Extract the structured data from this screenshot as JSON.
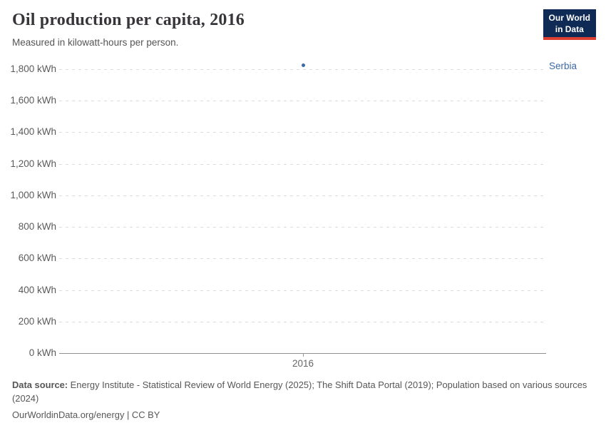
{
  "header": {
    "title": "Oil production per capita, 2016",
    "subtitle": "Measured in kilowatt-hours per person.",
    "logo": {
      "line1": "Our World",
      "line2": "in Data"
    }
  },
  "footer": {
    "source_label": "Data source:",
    "source_text": " Energy Institute - Statistical Review of World Energy (2025); The Shift Data Portal (2019); Population based on various sources (2024)",
    "note": "OurWorldinData.org/energy | CC BY"
  },
  "colors": {
    "accent_blue": "#3d6aa8",
    "logo_bg": "#0e2a55",
    "logo_red": "#dc3e32",
    "gridline": "#dcdcdc",
    "axis": "#8f8f8f",
    "text_gray": "#5b5b5b"
  },
  "chart_data": {
    "type": "scatter",
    "title": "Oil production per capita, 2016",
    "unit": "kilowatt-hours per person",
    "x": [
      2016
    ],
    "series": [
      {
        "name": "Serbia",
        "x": 2016,
        "value": 1827,
        "color": "#3d6aa8"
      }
    ],
    "x_tick_labels": [
      "2016"
    ],
    "y_ticks": [
      {
        "value": 1800,
        "label": "1,800 kWh"
      },
      {
        "value": 1600,
        "label": "1,600 kWh"
      },
      {
        "value": 1400,
        "label": "1,400 kWh"
      },
      {
        "value": 1200,
        "label": "1,200 kWh"
      },
      {
        "value": 1000,
        "label": "1,000 kWh"
      },
      {
        "value": 800,
        "label": "800 kWh"
      },
      {
        "value": 600,
        "label": "600 kWh"
      },
      {
        "value": 400,
        "label": "400 kWh"
      },
      {
        "value": 200,
        "label": "200 kWh"
      },
      {
        "value": 0,
        "label": "0 kWh"
      }
    ],
    "ylim": [
      0,
      1800
    ],
    "grid": "horizontal-dashed",
    "legend_position": "right-entity-label"
  }
}
